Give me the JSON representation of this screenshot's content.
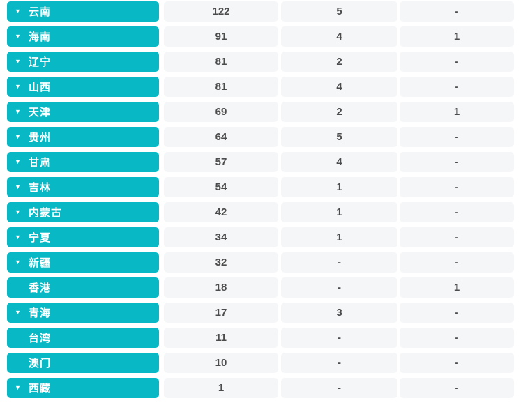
{
  "colors": {
    "accent": "#08b8c4",
    "cell_background": "#f5f6f8",
    "value_text": "#4c4c4c",
    "button_text": "#ffffff",
    "page_background": "#ffffff"
  },
  "icons": {
    "row_caret": {
      "name": "caret-down-icon",
      "glyph": "▼"
    }
  },
  "table": {
    "columns_visible": 3,
    "rows": [
      {
        "name": "云南",
        "expandable": true,
        "values": [
          "122",
          "5",
          "-"
        ]
      },
      {
        "name": "海南",
        "expandable": true,
        "values": [
          "91",
          "4",
          "1"
        ]
      },
      {
        "name": "辽宁",
        "expandable": true,
        "values": [
          "81",
          "2",
          "-"
        ]
      },
      {
        "name": "山西",
        "expandable": true,
        "values": [
          "81",
          "4",
          "-"
        ]
      },
      {
        "name": "天津",
        "expandable": true,
        "values": [
          "69",
          "2",
          "1"
        ]
      },
      {
        "name": "贵州",
        "expandable": true,
        "values": [
          "64",
          "5",
          "-"
        ]
      },
      {
        "name": "甘肃",
        "expandable": true,
        "values": [
          "57",
          "4",
          "-"
        ]
      },
      {
        "name": "吉林",
        "expandable": true,
        "values": [
          "54",
          "1",
          "-"
        ]
      },
      {
        "name": "内蒙古",
        "expandable": true,
        "values": [
          "42",
          "1",
          "-"
        ]
      },
      {
        "name": "宁夏",
        "expandable": true,
        "values": [
          "34",
          "1",
          "-"
        ]
      },
      {
        "name": "新疆",
        "expandable": true,
        "values": [
          "32",
          "-",
          "-"
        ]
      },
      {
        "name": "香港",
        "expandable": false,
        "values": [
          "18",
          "-",
          "1"
        ]
      },
      {
        "name": "青海",
        "expandable": true,
        "values": [
          "17",
          "3",
          "-"
        ]
      },
      {
        "name": "台湾",
        "expandable": false,
        "values": [
          "11",
          "-",
          "-"
        ]
      },
      {
        "name": "澳门",
        "expandable": false,
        "values": [
          "10",
          "-",
          "-"
        ]
      },
      {
        "name": "西藏",
        "expandable": true,
        "values": [
          "1",
          "-",
          "-"
        ]
      }
    ]
  }
}
